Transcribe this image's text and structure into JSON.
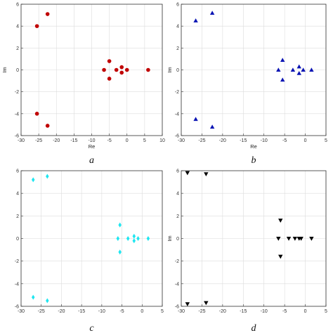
{
  "chart_data": [
    {
      "type": "scatter",
      "caption": "a",
      "xlabel": "Re",
      "ylabel": "Im",
      "xlim": [
        -30,
        10
      ],
      "ylim": [
        -6,
        6
      ],
      "xticks": [
        -30,
        -25,
        -20,
        -15,
        -10,
        -5,
        0,
        5,
        10
      ],
      "yticks": [
        -6,
        -4,
        -2,
        0,
        2,
        4,
        6
      ],
      "grid": true,
      "marker": "circle",
      "color": "#c00000",
      "points": [
        {
          "x": -22.5,
          "y": 5.1
        },
        {
          "x": -25.5,
          "y": 4.0
        },
        {
          "x": -25.5,
          "y": -4.0
        },
        {
          "x": -22.5,
          "y": -5.1
        },
        {
          "x": -5.0,
          "y": 0.8
        },
        {
          "x": -5.0,
          "y": -0.8
        },
        {
          "x": -6.5,
          "y": 0.0
        },
        {
          "x": -3.0,
          "y": 0.0
        },
        {
          "x": -1.5,
          "y": 0.25
        },
        {
          "x": -1.5,
          "y": -0.25
        },
        {
          "x": 0.0,
          "y": 0.0
        },
        {
          "x": 6.0,
          "y": 0.0
        }
      ]
    },
    {
      "type": "scatter",
      "caption": "b",
      "xlabel": "Re",
      "ylabel": "Im",
      "xlim": [
        -30,
        5
      ],
      "ylim": [
        -6,
        6
      ],
      "xticks": [
        -30,
        -25,
        -20,
        -15,
        -10,
        -5,
        0,
        5
      ],
      "yticks": [
        -6,
        -4,
        -2,
        0,
        2,
        4,
        6
      ],
      "grid": true,
      "marker": "triangle-up",
      "color": "#0a14b4",
      "points": [
        {
          "x": -22.5,
          "y": 5.2
        },
        {
          "x": -26.5,
          "y": 4.5
        },
        {
          "x": -26.5,
          "y": -4.5
        },
        {
          "x": -22.5,
          "y": -5.2
        },
        {
          "x": -5.5,
          "y": 0.9
        },
        {
          "x": -5.5,
          "y": -0.9
        },
        {
          "x": -6.5,
          "y": 0.0
        },
        {
          "x": -3.0,
          "y": 0.0
        },
        {
          "x": -1.5,
          "y": 0.3
        },
        {
          "x": -1.5,
          "y": -0.3
        },
        {
          "x": -0.5,
          "y": 0.0
        },
        {
          "x": 1.5,
          "y": 0.0
        }
      ]
    },
    {
      "type": "scatter",
      "caption": "c",
      "xlabel": "",
      "ylabel": "",
      "xlim": [
        -30,
        5
      ],
      "ylim": [
        -6,
        6
      ],
      "xticks": [
        -30,
        -25,
        -20,
        -15,
        -10,
        -5,
        0,
        5
      ],
      "yticks": [
        -6,
        -4,
        -2,
        0,
        2,
        4,
        6
      ],
      "grid": true,
      "marker": "diamond",
      "color": "#1ee6f0",
      "points": [
        {
          "x": -27.0,
          "y": 5.2
        },
        {
          "x": -23.5,
          "y": 5.5
        },
        {
          "x": -27.0,
          "y": -5.2
        },
        {
          "x": -23.5,
          "y": -5.5
        },
        {
          "x": -5.5,
          "y": 1.2
        },
        {
          "x": -5.5,
          "y": -1.2
        },
        {
          "x": -6.0,
          "y": 0.0
        },
        {
          "x": -3.5,
          "y": 0.0
        },
        {
          "x": -2.0,
          "y": 0.2
        },
        {
          "x": -2.0,
          "y": -0.2
        },
        {
          "x": -1.0,
          "y": 0.0
        },
        {
          "x": 1.5,
          "y": 0.0
        }
      ]
    },
    {
      "type": "scatter",
      "caption": "d",
      "xlabel": "",
      "ylabel": "Im",
      "xlim": [
        -30,
        5
      ],
      "ylim": [
        -6,
        6
      ],
      "xticks": [
        -30,
        -25,
        -20,
        -15,
        -10,
        -5,
        0,
        5
      ],
      "yticks": [
        -6,
        -4,
        -2,
        0,
        2,
        4,
        6
      ],
      "grid": true,
      "marker": "triangle-down",
      "color": "#000000",
      "points": [
        {
          "x": -28.5,
          "y": 5.8
        },
        {
          "x": -24.0,
          "y": 5.7
        },
        {
          "x": -28.5,
          "y": -5.8
        },
        {
          "x": -24.0,
          "y": -5.7
        },
        {
          "x": -6.0,
          "y": 1.6
        },
        {
          "x": -6.0,
          "y": -1.6
        },
        {
          "x": -6.5,
          "y": 0.0
        },
        {
          "x": -4.0,
          "y": 0.0
        },
        {
          "x": -2.5,
          "y": 0.0
        },
        {
          "x": -1.5,
          "y": 0.0
        },
        {
          "x": -1.0,
          "y": 0.0
        },
        {
          "x": 1.5,
          "y": 0.0
        }
      ]
    }
  ]
}
